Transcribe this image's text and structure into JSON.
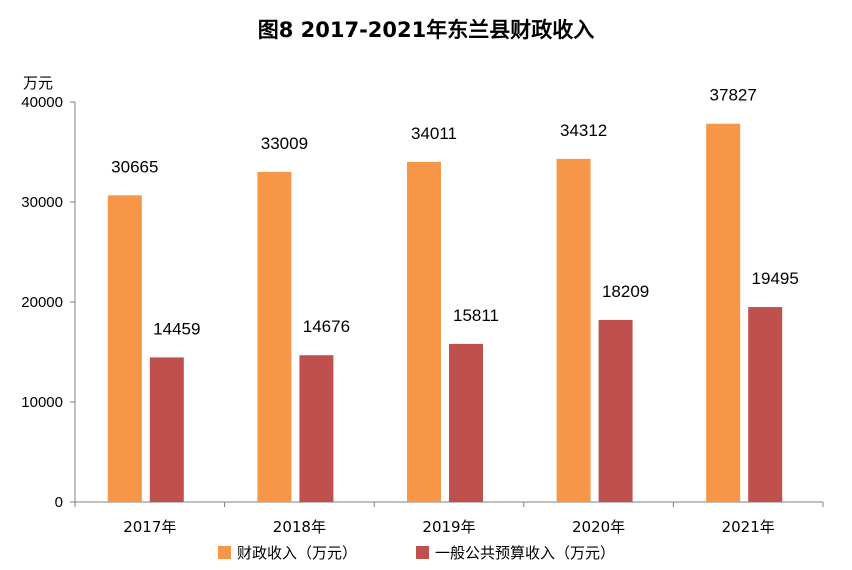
{
  "chart_data": {
    "type": "bar",
    "title": "图8  2017-2021年东兰县财政收入",
    "ylabel": "万元",
    "ylim": [
      0,
      40000
    ],
    "yticks": [
      "0",
      "10000",
      "20000",
      "30000",
      "40000"
    ],
    "categories": [
      "2017年",
      "2018年",
      "2019年",
      "2020年",
      "2021年"
    ],
    "series": [
      {
        "name": "财政收入（万元）",
        "color": "#F79646",
        "values": [
          30665,
          33009,
          34011,
          34312,
          37827
        ]
      },
      {
        "name": "一般公共预算收入（万元）",
        "color": "#C0504D",
        "values": [
          14459,
          14676,
          15811,
          18209,
          19495
        ]
      }
    ],
    "grid": false,
    "legend_position": "bottom"
  }
}
